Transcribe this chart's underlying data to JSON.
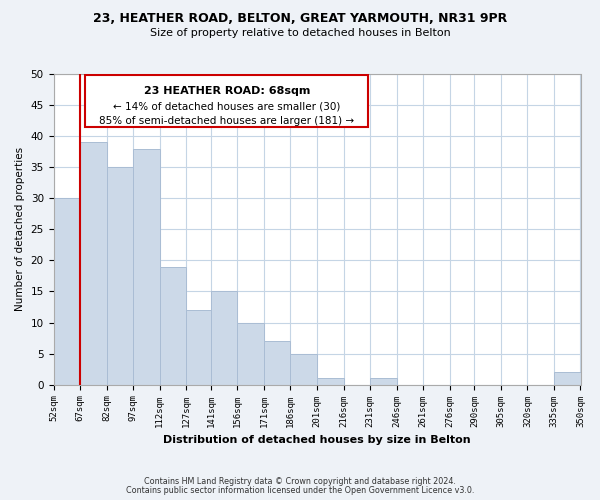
{
  "title1": "23, HEATHER ROAD, BELTON, GREAT YARMOUTH, NR31 9PR",
  "title2": "Size of property relative to detached houses in Belton",
  "xlabel": "Distribution of detached houses by size in Belton",
  "ylabel": "Number of detached properties",
  "bins": [
    52,
    67,
    82,
    97,
    112,
    127,
    141,
    156,
    171,
    186,
    201,
    216,
    231,
    246,
    261,
    276,
    290,
    305,
    320,
    335,
    350
  ],
  "bin_labels": [
    "52sqm",
    "67sqm",
    "82sqm",
    "97sqm",
    "112sqm",
    "127sqm",
    "141sqm",
    "156sqm",
    "171sqm",
    "186sqm",
    "201sqm",
    "216sqm",
    "231sqm",
    "246sqm",
    "261sqm",
    "276sqm",
    "290sqm",
    "305sqm",
    "320sqm",
    "335sqm",
    "350sqm"
  ],
  "counts": [
    30,
    39,
    35,
    38,
    19,
    12,
    15,
    10,
    7,
    5,
    1,
    0,
    1,
    0,
    0,
    0,
    0,
    0,
    0,
    2
  ],
  "bar_color": "#ccd9e8",
  "bar_edge_color": "#aabdd4",
  "property_line_x": 67,
  "property_line_color": "#cc0000",
  "annotation_title": "23 HEATHER ROAD: 68sqm",
  "annotation_line1": "← 14% of detached houses are smaller (30)",
  "annotation_line2": "85% of semi-detached houses are larger (181) →",
  "annotation_box_color": "#ffffff",
  "annotation_box_edge": "#cc0000",
  "ylim": [
    0,
    50
  ],
  "yticks": [
    0,
    5,
    10,
    15,
    20,
    25,
    30,
    35,
    40,
    45,
    50
  ],
  "footer1": "Contains HM Land Registry data © Crown copyright and database right 2024.",
  "footer2": "Contains public sector information licensed under the Open Government Licence v3.0.",
  "bg_color": "#eef2f7",
  "plot_bg_color": "#ffffff",
  "grid_color": "#c5d5e5"
}
